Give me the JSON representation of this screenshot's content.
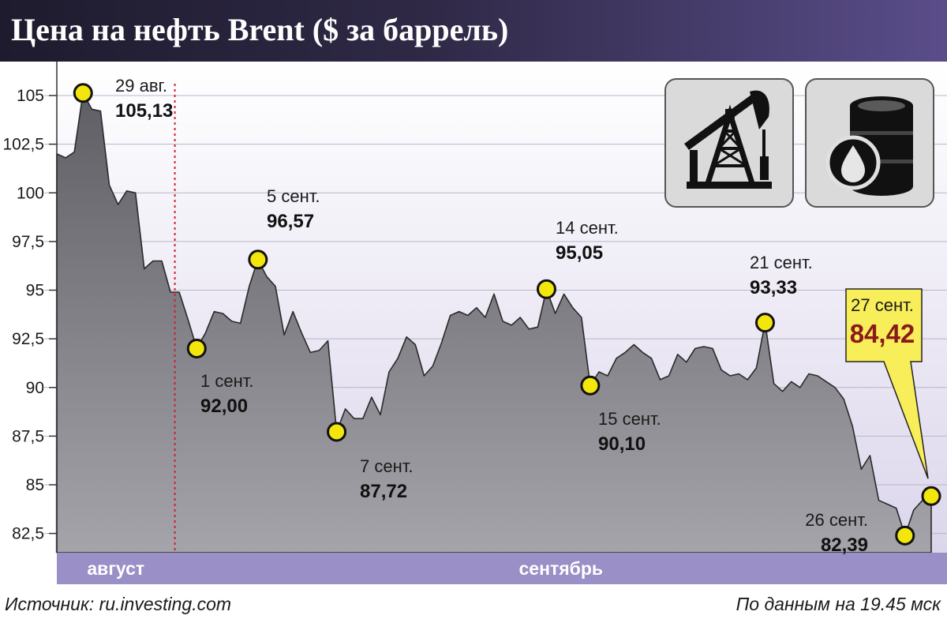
{
  "header": {
    "title": "Цена на нефть Brent ($ за баррель)"
  },
  "footer": {
    "source": "Источник: ru.investing.com",
    "as_of": "По данным на 19.45 мск"
  },
  "icons": [
    "oil-pump-icon",
    "oil-barrel-icon"
  ],
  "colors": {
    "header_dark": "#1e1b2e",
    "header_light": "#5a4d8a",
    "area_fill": "#7a7a80",
    "band": "#9a8fc6",
    "marker": "#f3e60c",
    "callout": "#f7ee5a",
    "highlight_value": "#8b1a1a",
    "divider": "#d0202a"
  },
  "chart_data": {
    "type": "area",
    "title": "Цена на нефть Brent ($ за баррель)",
    "ylim": [
      81.5,
      107
    ],
    "yticks": [
      82.5,
      85,
      87.5,
      90,
      92.5,
      95,
      97.5,
      100,
      102.5,
      105
    ],
    "ytick_labels": [
      "82,5",
      "85",
      "87,5",
      "90",
      "92,5",
      "95",
      "97,5",
      "100",
      "102,5",
      "105"
    ],
    "months": [
      "август",
      "сентябрь"
    ],
    "grid": true,
    "series": [
      {
        "values": [
          102.0,
          101.8,
          102.1,
          105.13,
          104.3,
          104.2,
          100.4,
          99.4,
          100.1,
          100.0,
          96.1,
          96.5,
          96.5,
          94.9,
          94.9,
          93.5,
          92.0,
          92.8,
          93.9,
          93.8,
          93.4,
          93.3,
          95.2,
          96.57,
          95.7,
          95.2,
          92.7,
          93.9,
          92.8,
          91.8,
          91.9,
          92.4,
          87.72,
          88.9,
          88.4,
          88.4,
          89.5,
          88.6,
          90.8,
          91.5,
          92.6,
          92.2,
          90.6,
          91.1,
          92.3,
          93.7,
          93.9,
          93.7,
          94.1,
          93.6,
          94.8,
          93.4,
          93.2,
          93.6,
          93.0,
          93.1,
          95.05,
          93.8,
          94.8,
          94.1,
          93.6,
          90.1,
          90.8,
          90.6,
          91.5,
          91.8,
          92.2,
          91.8,
          91.5,
          90.4,
          90.6,
          91.7,
          91.3,
          92.0,
          92.1,
          92.0,
          90.9,
          90.6,
          90.7,
          90.4,
          91.0,
          93.33,
          90.2,
          89.8,
          90.3,
          90.0,
          90.7,
          90.6,
          90.3,
          90.0,
          89.4,
          88.0,
          85.8,
          86.5,
          84.2,
          84.0,
          83.8,
          82.39,
          83.7,
          84.2,
          84.42
        ],
        "color": "#7a7a80"
      }
    ],
    "annotations": [
      {
        "date": "29 авг.",
        "value": "105,13",
        "index": 3
      },
      {
        "date": "1 сент.",
        "value": "92,00",
        "index": 16
      },
      {
        "date": "5 сент.",
        "value": "96,57",
        "index": 23
      },
      {
        "date": "7 сент.",
        "value": "87,72",
        "index": 32
      },
      {
        "date": "14 сент.",
        "value": "95,05",
        "index": 56
      },
      {
        "date": "15 сент.",
        "value": "90,10",
        "index": 61
      },
      {
        "date": "21 сент.",
        "value": "93,33",
        "index": 81
      },
      {
        "date": "26 сент.",
        "value": "82,39",
        "index": 97
      },
      {
        "date": "27 сент.",
        "value": "84,42",
        "index": 100,
        "highlight": true
      }
    ],
    "month_divider_index": 13.5
  }
}
